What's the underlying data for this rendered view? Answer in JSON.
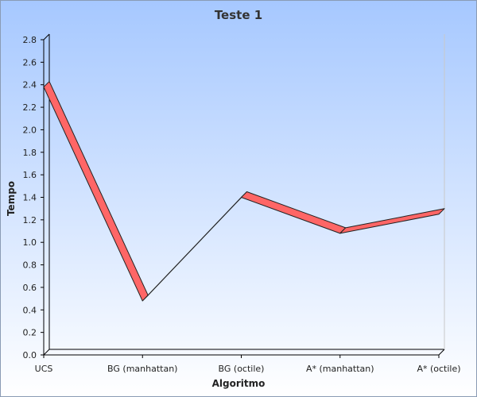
{
  "chart_data": {
    "type": "line",
    "title": "Teste 1",
    "xlabel": "Algoritmo",
    "ylabel": "Tempo",
    "categories": [
      "UCS",
      "BG (manhattan)",
      "BG (octile)",
      "A* (manhattan)",
      "A* (octile)"
    ],
    "series": [
      {
        "values": [
          2.38,
          0.48,
          1.4,
          1.08,
          1.25
        ]
      }
    ],
    "ylim": [
      0,
      2.8
    ],
    "yticks": [
      "0.0",
      "0.2",
      "0.4",
      "0.6",
      "0.8",
      "1.0",
      "1.2",
      "1.4",
      "1.6",
      "1.8",
      "2.0",
      "2.2",
      "2.4",
      "2.6",
      "2.8"
    ],
    "grid": false,
    "legend": "none",
    "style": "3d-ribbon",
    "colors": {
      "background_top": "#a6c8ff",
      "background_bottom": "#ffffff",
      "ribbon_face": "#ff6666",
      "ribbon_stroke": "#222222",
      "frame": "#000000"
    }
  }
}
